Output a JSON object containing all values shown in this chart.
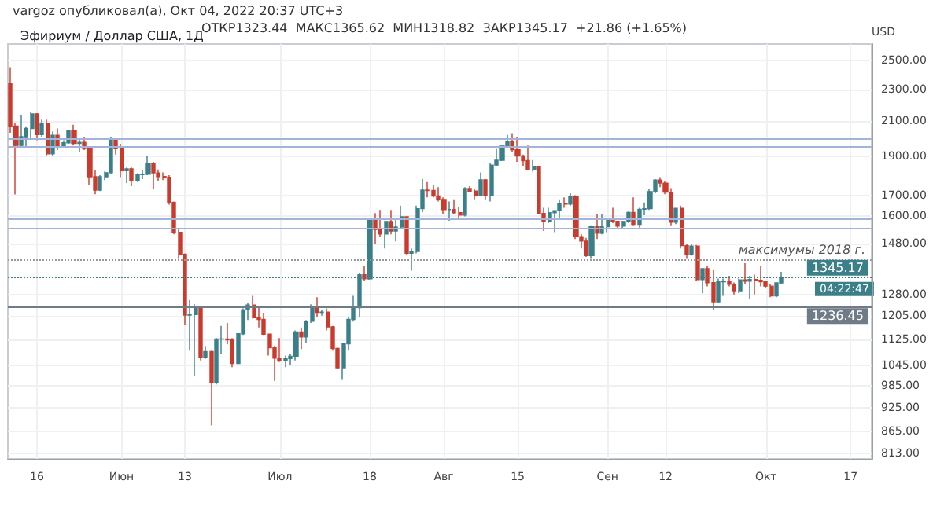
{
  "chart_data": {
    "type": "candlestick",
    "title": "Эфириум / Доллар США, 1Д",
    "ylabel": "USD",
    "annotations": [
      "vargoz опубликовал(а), Окт 04, 2022 20:37 UTC+3",
      "ОТКР1323.44  МАКС1365.62  МИН1318.82  ЗАКР1345.17  +21.86 (+1.65%)",
      "04:22:47"
    ],
    "colors": [
      "#c93b2d",
      "#c93b2d",
      "#3b7f89",
      "#3b7f89",
      "#3b7f89",
      "#c93b2d",
      "#3b7f89",
      "#c93b2d",
      "#3b7f89",
      "#c93b2d",
      "#3b7f89",
      "#3b7f89",
      "#c93b2d",
      "#3b7f89",
      "#c93b2d",
      "#c93b2d",
      "#c93b2d",
      "#3b7f89",
      "#3b7f89",
      "#3b7f89",
      "#c93b2d",
      "#c93b2d",
      "#3b7f89",
      "#c93b2d",
      "#3b7f89",
      "#3b7f89",
      "#3b7f89",
      "#c93b2d",
      "#c93b2d",
      "#c93b2d",
      "#c93b2d",
      "#c93b2d",
      "#c93b2d",
      "#c93b2d",
      "#3b7f89",
      "#3b7f89",
      "#c93b2d",
      "#3b7f89",
      "#c93b2d",
      "#3b7f89",
      "#3b7f89",
      "#c93b2d",
      "#c93b2d",
      "#3b7f89",
      "#3b7f89",
      "#3b7f89",
      "#c93b2d",
      "#c93b2d",
      "#c93b2d",
      "#c93b2d",
      "#c93b2d",
      "#c93b2d",
      "#3b7f89",
      "#3b7f89",
      "#3b7f89",
      "#c93b2d",
      "#3b7f89",
      "#3b7f89",
      "#c93b2d",
      "#3b7f89",
      "#c93b2d",
      "#c93b2d",
      "#c93b2d",
      "#3b7f89",
      "#3b7f89",
      "#3b7f89",
      "#3b7f89",
      "#c93b2d",
      "#3b7f89",
      "#c93b2d",
      "#c93b2d",
      "#3b7f89",
      "#c93b2d",
      "#3b7f89",
      "#3b7f89",
      "#c93b2d",
      "#3b7f89",
      "#3b7f89",
      "#3b7f89",
      "#c93b2d",
      "#c93b2d",
      "#c93b2d",
      "#c93b2d",
      "#3b7f89",
      "#c93b2d",
      "#c93b2d",
      "#3b7f89",
      "#c93b2d",
      "#c93b2d",
      "#3b7f89",
      "#c93b2d",
      "#3b7f89",
      "#3b7f89",
      "#3b7f89",
      "#3b7f89",
      "#c93b2d",
      "#c93b2d",
      "#c93b2d",
      "#c93b2d",
      "#3b7f89",
      "#c93b2d",
      "#c93b2d",
      "#3b7f89",
      "#3b7f89",
      "#3b7f89",
      "#c93b2d",
      "#3b7f89",
      "#c93b2d",
      "#c93b2d",
      "#c93b2d",
      "#3b7f89",
      "#c93b2d",
      "#3b7f89",
      "#3b7f89",
      "#c93b2d",
      "#c93b2d",
      "#3b7f89",
      "#3b7f89",
      "#c93b2d",
      "#3b7f89",
      "#3b7f89",
      "#3b7f89",
      "#3b7f89",
      "#c93b2d",
      "#c93b2d",
      "#c93b2d",
      "#3b7f89",
      "#c93b2d",
      "#c93b2d",
      "#3b7f89",
      "#c93b2d",
      "#3b7f89",
      "#c93b2d",
      "#c93b2d",
      "#3b7f89",
      "#3b7f89",
      "#c93b2d",
      "#c93b2d",
      "#3b7f89",
      "#c93b2d",
      "#3b7f89",
      "#c93b2d",
      "#c93b2d",
      "#c93b2d",
      "#c93b2d",
      "#3b7f89",
      "#3b7f89"
    ],
    "x": [
      "2022-05-11",
      "2022-05-12",
      "2022-05-13",
      "2022-05-14",
      "2022-05-15",
      "2022-05-16",
      "2022-05-17",
      "2022-05-18",
      "2022-05-19",
      "2022-05-20",
      "2022-05-21",
      "2022-05-22",
      "2022-05-23",
      "2022-05-24",
      "2022-05-25",
      "2022-05-26",
      "2022-05-27",
      "2022-05-28",
      "2022-05-29",
      "2022-05-30",
      "2022-05-31",
      "2022-06-01",
      "2022-06-02",
      "2022-06-03",
      "2022-06-04",
      "2022-06-05",
      "2022-06-06",
      "2022-06-07",
      "2022-06-08",
      "2022-06-09",
      "2022-06-10",
      "2022-06-11",
      "2022-06-12",
      "2022-06-13",
      "2022-06-14",
      "2022-06-15",
      "2022-06-16",
      "2022-06-17",
      "2022-06-18",
      "2022-06-19",
      "2022-06-20",
      "2022-06-21",
      "2022-06-22",
      "2022-06-23",
      "2022-06-24",
      "2022-06-25",
      "2022-06-26",
      "2022-06-27",
      "2022-06-28",
      "2022-06-29",
      "2022-06-30",
      "2022-07-01",
      "2022-07-02",
      "2022-07-03",
      "2022-07-04",
      "2022-07-05",
      "2022-07-06",
      "2022-07-07",
      "2022-07-08",
      "2022-07-09",
      "2022-07-10",
      "2022-07-11",
      "2022-07-12",
      "2022-07-13",
      "2022-07-14",
      "2022-07-15",
      "2022-07-16",
      "2022-07-17",
      "2022-07-18",
      "2022-07-19",
      "2022-07-20",
      "2022-07-21",
      "2022-07-22",
      "2022-07-23",
      "2022-07-24",
      "2022-07-25",
      "2022-07-26",
      "2022-07-27",
      "2022-07-28",
      "2022-07-29",
      "2022-07-30",
      "2022-07-31",
      "2022-08-01",
      "2022-08-02",
      "2022-08-03",
      "2022-08-04",
      "2022-08-05",
      "2022-08-06",
      "2022-08-07",
      "2022-08-08",
      "2022-08-09",
      "2022-08-10",
      "2022-08-11",
      "2022-08-12",
      "2022-08-13",
      "2022-08-14",
      "2022-08-15",
      "2022-08-16",
      "2022-08-17",
      "2022-08-18",
      "2022-08-19",
      "2022-08-20",
      "2022-08-21",
      "2022-08-22",
      "2022-08-23",
      "2022-08-24",
      "2022-08-25",
      "2022-08-26",
      "2022-08-27",
      "2022-08-28",
      "2022-08-29",
      "2022-08-30",
      "2022-08-31",
      "2022-09-01",
      "2022-09-02",
      "2022-09-03",
      "2022-09-04",
      "2022-09-05",
      "2022-09-06",
      "2022-09-07",
      "2022-09-08",
      "2022-09-09",
      "2022-09-10",
      "2022-09-11",
      "2022-09-12",
      "2022-09-13",
      "2022-09-14",
      "2022-09-15",
      "2022-09-16",
      "2022-09-17",
      "2022-09-18",
      "2022-09-19",
      "2022-09-20",
      "2022-09-21",
      "2022-09-22",
      "2022-09-23",
      "2022-09-24",
      "2022-09-25",
      "2022-09-26",
      "2022-09-27",
      "2022-09-28",
      "2022-09-29",
      "2022-09-30",
      "2022-10-01",
      "2022-10-02",
      "2022-10-03",
      "2022-10-04"
    ],
    "ohlc": [
      [
        2342,
        2452,
        2032,
        2072
      ],
      [
        2072,
        2090,
        1704,
        1960
      ],
      [
        1960,
        2140,
        1950,
        2010
      ],
      [
        2010,
        2070,
        1950,
        2058
      ],
      [
        2058,
        2160,
        2000,
        2145
      ],
      [
        2145,
        2150,
        1990,
        2022
      ],
      [
        2022,
        2110,
        2010,
        2090
      ],
      [
        2090,
        2110,
        1905,
        1914
      ],
      [
        1914,
        2040,
        1900,
        2018
      ],
      [
        2018,
        2058,
        1935,
        1959
      ],
      [
        1959,
        1990,
        1945,
        1975
      ],
      [
        1975,
        2050,
        1970,
        2043
      ],
      [
        2043,
        2080,
        1960,
        1972
      ],
      [
        1972,
        2000,
        1925,
        1978
      ],
      [
        1978,
        2010,
        1935,
        1943
      ],
      [
        1943,
        1950,
        1750,
        1792
      ],
      [
        1792,
        1825,
        1705,
        1725
      ],
      [
        1725,
        1800,
        1720,
        1792
      ],
      [
        1792,
        1820,
        1775,
        1813
      ],
      [
        1813,
        2010,
        1805,
        1997
      ],
      [
        1997,
        2000,
        1910,
        1942
      ],
      [
        1942,
        1970,
        1790,
        1823
      ],
      [
        1823,
        1840,
        1760,
        1833
      ],
      [
        1833,
        1840,
        1745,
        1775
      ],
      [
        1775,
        1810,
        1765,
        1803
      ],
      [
        1803,
        1825,
        1780,
        1805
      ],
      [
        1805,
        1900,
        1800,
        1860
      ],
      [
        1860,
        1870,
        1730,
        1812
      ],
      [
        1812,
        1830,
        1770,
        1793
      ],
      [
        1793,
        1815,
        1775,
        1789
      ],
      [
        1789,
        1800,
        1655,
        1665
      ],
      [
        1665,
        1670,
        1520,
        1529
      ],
      [
        1529,
        1550,
        1420,
        1436
      ],
      [
        1436,
        1440,
        1175,
        1207
      ],
      [
        1207,
        1260,
        1090,
        1209
      ],
      [
        1209,
        1245,
        1015,
        1234
      ],
      [
        1234,
        1240,
        1060,
        1069
      ],
      [
        1069,
        1105,
        1065,
        1087
      ],
      [
        1087,
        1090,
        880,
        995
      ],
      [
        995,
        1130,
        990,
        1127
      ],
      [
        1127,
        1170,
        1080,
        1127
      ],
      [
        1127,
        1180,
        1110,
        1124
      ],
      [
        1124,
        1130,
        1040,
        1051
      ],
      [
        1051,
        1145,
        1050,
        1144
      ],
      [
        1144,
        1230,
        1140,
        1225
      ],
      [
        1225,
        1250,
        1190,
        1242
      ],
      [
        1242,
        1275,
        1195,
        1198
      ],
      [
        1198,
        1235,
        1165,
        1192
      ],
      [
        1192,
        1215,
        1140,
        1143
      ],
      [
        1143,
        1145,
        1075,
        1099
      ],
      [
        1099,
        1105,
        1000,
        1067
      ],
      [
        1067,
        1130,
        1055,
        1060
      ],
      [
        1060,
        1075,
        1040,
        1066
      ],
      [
        1066,
        1080,
        1045,
        1073
      ],
      [
        1073,
        1155,
        1060,
        1150
      ],
      [
        1150,
        1165,
        1095,
        1134
      ],
      [
        1134,
        1190,
        1115,
        1186
      ],
      [
        1186,
        1245,
        1180,
        1238
      ],
      [
        1238,
        1270,
        1200,
        1216
      ],
      [
        1216,
        1225,
        1205,
        1217
      ],
      [
        1217,
        1230,
        1155,
        1167
      ],
      [
        1167,
        1170,
        1090,
        1097
      ],
      [
        1097,
        1100,
        1035,
        1038
      ],
      [
        1038,
        1115,
        1005,
        1112
      ],
      [
        1112,
        1200,
        1090,
        1192
      ],
      [
        1192,
        1275,
        1185,
        1233
      ],
      [
        1233,
        1360,
        1200,
        1354
      ],
      [
        1354,
        1390,
        1330,
        1339
      ],
      [
        1339,
        1590,
        1335,
        1582
      ],
      [
        1582,
        1615,
        1480,
        1542
      ],
      [
        1542,
        1630,
        1510,
        1522
      ],
      [
        1522,
        1580,
        1460,
        1577
      ],
      [
        1577,
        1630,
        1520,
        1535
      ],
      [
        1535,
        1585,
        1490,
        1552
      ],
      [
        1552,
        1650,
        1545,
        1598
      ],
      [
        1598,
        1600,
        1435,
        1440
      ],
      [
        1440,
        1460,
        1370,
        1448
      ],
      [
        1448,
        1650,
        1440,
        1636
      ],
      [
        1636,
        1780,
        1620,
        1725
      ],
      [
        1725,
        1765,
        1690,
        1723
      ],
      [
        1723,
        1750,
        1690,
        1696
      ],
      [
        1696,
        1740,
        1670,
        1679
      ],
      [
        1679,
        1690,
        1610,
        1632
      ],
      [
        1632,
        1670,
        1580,
        1632
      ],
      [
        1632,
        1680,
        1610,
        1617
      ],
      [
        1617,
        1645,
        1595,
        1606
      ],
      [
        1606,
        1740,
        1600,
        1733
      ],
      [
        1733,
        1745,
        1715,
        1720
      ],
      [
        1720,
        1730,
        1680,
        1697
      ],
      [
        1697,
        1815,
        1695,
        1776
      ],
      [
        1776,
        1780,
        1680,
        1700
      ],
      [
        1700,
        1865,
        1670,
        1853
      ],
      [
        1853,
        1940,
        1850,
        1879
      ],
      [
        1879,
        1960,
        1875,
        1957
      ],
      [
        1957,
        2020,
        1950,
        1984
      ],
      [
        1984,
        2030,
        1925,
        1936
      ],
      [
        1936,
        2010,
        1870,
        1902
      ],
      [
        1902,
        1910,
        1850,
        1877
      ],
      [
        1877,
        1960,
        1825,
        1831
      ],
      [
        1831,
        1880,
        1820,
        1847
      ],
      [
        1847,
        1850,
        1610,
        1614
      ],
      [
        1614,
        1640,
        1535,
        1576
      ],
      [
        1576,
        1640,
        1570,
        1617
      ],
      [
        1617,
        1630,
        1530,
        1626
      ],
      [
        1626,
        1680,
        1590,
        1662
      ],
      [
        1662,
        1690,
        1640,
        1657
      ],
      [
        1657,
        1710,
        1650,
        1695
      ],
      [
        1695,
        1700,
        1500,
        1510
      ],
      [
        1510,
        1520,
        1460,
        1491
      ],
      [
        1491,
        1505,
        1425,
        1431
      ],
      [
        1431,
        1560,
        1420,
        1553
      ],
      [
        1553,
        1610,
        1500,
        1525
      ],
      [
        1525,
        1610,
        1520,
        1554
      ],
      [
        1554,
        1590,
        1530,
        1586
      ],
      [
        1586,
        1640,
        1570,
        1578
      ],
      [
        1578,
        1580,
        1545,
        1556
      ],
      [
        1556,
        1580,
        1545,
        1577
      ],
      [
        1577,
        1625,
        1570,
        1618
      ],
      [
        1618,
        1690,
        1560,
        1564
      ],
      [
        1564,
        1640,
        1550,
        1633
      ],
      [
        1633,
        1665,
        1605,
        1636
      ],
      [
        1636,
        1730,
        1630,
        1718
      ],
      [
        1718,
        1780,
        1710,
        1775
      ],
      [
        1775,
        1790,
        1740,
        1760
      ],
      [
        1760,
        1770,
        1705,
        1715
      ],
      [
        1715,
        1735,
        1560,
        1574
      ],
      [
        1574,
        1640,
        1565,
        1637
      ],
      [
        1637,
        1650,
        1460,
        1472
      ],
      [
        1472,
        1480,
        1420,
        1435
      ],
      [
        1435,
        1480,
        1430,
        1470
      ],
      [
        1470,
        1475,
        1330,
        1336
      ],
      [
        1336,
        1380,
        1285,
        1378
      ],
      [
        1378,
        1390,
        1310,
        1324
      ],
      [
        1324,
        1375,
        1225,
        1254
      ],
      [
        1254,
        1340,
        1250,
        1328
      ],
      [
        1328,
        1340,
        1275,
        1328
      ],
      [
        1328,
        1350,
        1310,
        1318
      ],
      [
        1318,
        1325,
        1280,
        1294
      ],
      [
        1294,
        1340,
        1285,
        1335
      ],
      [
        1335,
        1400,
        1320,
        1330
      ],
      [
        1330,
        1350,
        1265,
        1336
      ],
      [
        1336,
        1355,
        1280,
        1333
      ],
      [
        1333,
        1390,
        1310,
        1328
      ],
      [
        1328,
        1330,
        1305,
        1311
      ],
      [
        1311,
        1320,
        1270,
        1275
      ],
      [
        1275,
        1325,
        1270,
        1323.44
      ],
      [
        1323.44,
        1365.62,
        1318.82,
        1345.17
      ]
    ],
    "xlim": [
      "2022-05-10T12:00",
      "2022-10-21"
    ],
    "xticks": [
      {
        "value": "2022-05-16",
        "label": "16"
      },
      {
        "value": "2022-06-01",
        "label": "Июн"
      },
      {
        "value": "2022-06-13",
        "label": "13"
      },
      {
        "value": "2022-07-01",
        "label": "Июл"
      },
      {
        "value": "2022-07-18",
        "label": "18"
      },
      {
        "value": "2022-08-01",
        "label": "Авг"
      },
      {
        "value": "2022-08-15",
        "label": "15"
      },
      {
        "value": "2022-09-01",
        "label": "Сен"
      },
      {
        "value": "2022-09-12",
        "label": "12"
      },
      {
        "value": "2022-10-01",
        "label": "Окт"
      },
      {
        "value": "2022-10-17",
        "label": "17"
      }
    ],
    "log": true,
    "ylim": [
      800,
      2620
    ],
    "yticks": [
      {
        "value": 813,
        "label": "813.00"
      },
      {
        "value": 865,
        "label": "865.00"
      },
      {
        "value": 925,
        "label": "925.00"
      },
      {
        "value": 985,
        "label": "985.00"
      },
      {
        "value": 1045,
        "label": "1045.00"
      },
      {
        "value": 1125,
        "label": "1125.00"
      },
      {
        "value": 1205,
        "label": "1205.00"
      },
      {
        "value": 1280,
        "label": "1280.00"
      },
      {
        "value": 1480,
        "label": "1480.00"
      },
      {
        "value": 1600,
        "label": "1600.00"
      },
      {
        "value": 1700,
        "label": "1700.00"
      },
      {
        "value": 1900,
        "label": "1900.00"
      },
      {
        "value": 2100,
        "label": "2100.00"
      },
      {
        "value": 2300,
        "label": "2300.00"
      },
      {
        "value": 2500,
        "label": "2500.00"
      }
    ],
    "grid": true,
    "ref_lines": [
      {
        "axis": "y",
        "value": 2003,
        "label": null,
        "color": "#a3b4d8",
        "line_style": "solid"
      },
      {
        "axis": "y",
        "value": 1950,
        "label": null,
        "color": "#a3b4d8",
        "line_style": "solid"
      },
      {
        "axis": "y",
        "value": 1592,
        "label": null,
        "color": "#a3b4d8",
        "line_style": "solid"
      },
      {
        "axis": "y",
        "value": 1544,
        "label": null,
        "color": "#a3b4d8",
        "line_style": "solid"
      },
      {
        "axis": "y",
        "value": 1417,
        "label": "максимумы 2018 г.",
        "color": "#9a9a9a",
        "line_style": "dotted"
      },
      {
        "axis": "y",
        "value": 1345.17,
        "label": "1345.17",
        "color": "#3b7f89",
        "line_style": "dotted"
      },
      {
        "axis": "y",
        "value": 1236.45,
        "label": "1236.45",
        "color": "#6f7c88",
        "line_style": "solid"
      }
    ]
  }
}
